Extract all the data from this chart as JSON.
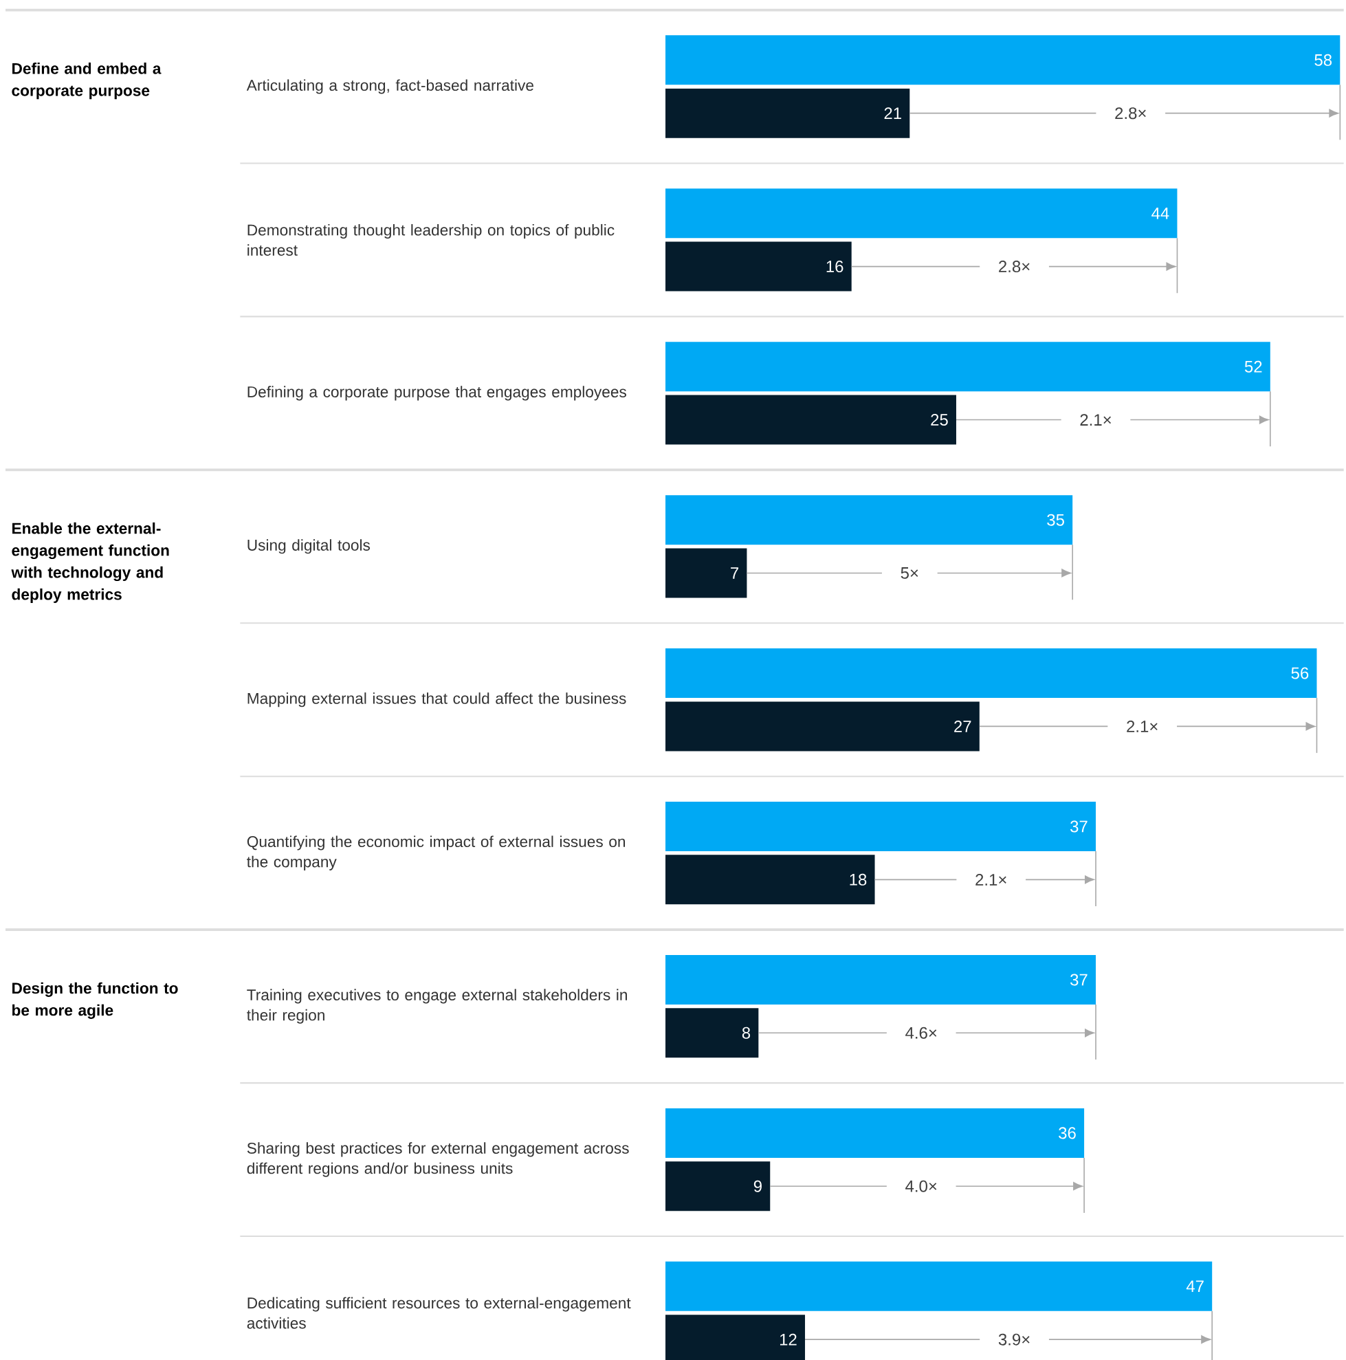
{
  "chart_data": {
    "type": "bar",
    "orientation": "horizontal",
    "data_labels": true,
    "tick_labels": "y",
    "categories": [
      "Articulating a strong, fact-based narrative",
      "Demonstrating thought leadership on topics of public interest",
      "Defining a corporate purpose that engages employees",
      "Using digital tools",
      "Mapping external issues that could affect the business",
      "Quantifying the economic impact of external issues on the company",
      "Training executives to engage external stakeholders in their region",
      "Sharing best practices for external engagement across different regions and/or business units",
      "Dedicating sufficient resources to external-engagement activities"
    ],
    "series": [
      {
        "color": "#00a9f4",
        "values": [
          58,
          44,
          52,
          35,
          56,
          37,
          37,
          36,
          47
        ]
      },
      {
        "color": "#051c2c",
        "values": [
          21,
          16,
          25,
          7,
          27,
          18,
          8,
          9,
          12
        ]
      }
    ],
    "annotations": [
      "**Define and embed a corporate purpose**",
      "**Enable the external-engagement function with technology and deploy metrics**",
      "**Design the function to be more agile**",
      {
        "text": "2.8×",
        "x": 40,
        "y": "Articulating a strong, fact-based narrative"
      },
      {
        "text": "2.8×",
        "x": 30,
        "y": "Demonstrating thought leadership on topics of public interest"
      },
      {
        "text": "2.1×",
        "x": 37,
        "y": "Defining a corporate purpose that engages employees"
      },
      {
        "text": "5×",
        "x": 21,
        "y": "Using digital tools"
      },
      {
        "text": "2.1×",
        "x": 41,
        "y": "Mapping external issues that could affect the business"
      },
      {
        "text": "2.1×",
        "x": 28,
        "y": "Quantifying the economic impact of external issues on the company"
      },
      {
        "text": "4.6×",
        "x": 22,
        "y": "Training executives to engage external stakeholders in their region"
      },
      {
        "text": "4.0×",
        "x": 22,
        "y": "Sharing best practices for external engagement across different regions and/or business units"
      },
      {
        "text": "3.9×",
        "x": 30,
        "y": "Dedicating sufficient resources to external-engagement activities"
      }
    ]
  }
}
